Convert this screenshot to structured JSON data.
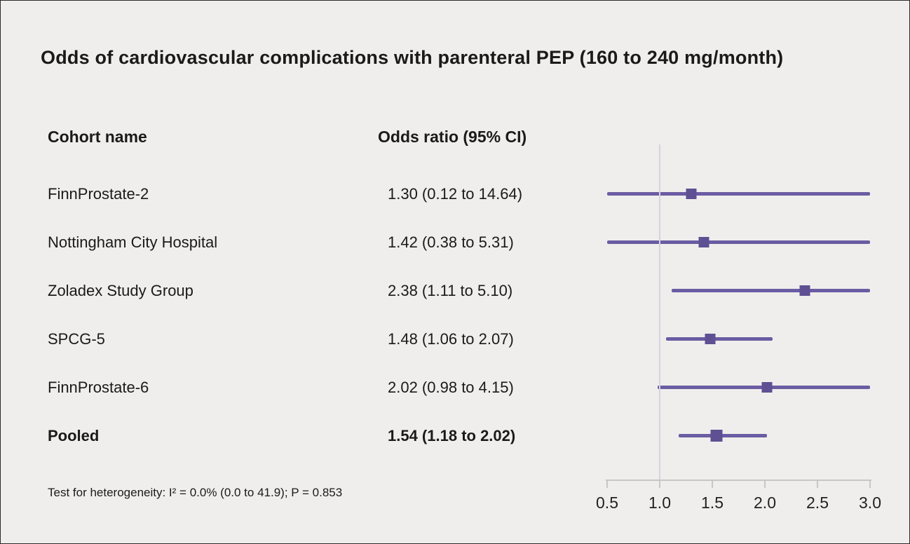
{
  "chart_data": {
    "type": "forest",
    "title": "Odds of cardiovascular complications with parenteral PEP (160 to 240 mg/month)",
    "columns": [
      "Cohort name",
      "Odds ratio (95% CI)"
    ],
    "rows": [
      {
        "name": "FinnProstate-2",
        "or_label": "1.30 (0.12 to 14.64)",
        "or": 1.3,
        "lo": 0.12,
        "hi": 14.64,
        "pooled": false
      },
      {
        "name": "Nottingham City Hospital",
        "or_label": "1.42 (0.38 to 5.31)",
        "or": 1.42,
        "lo": 0.38,
        "hi": 5.31,
        "pooled": false
      },
      {
        "name": "Zoladex Study Group",
        "or_label": "2.38 (1.11 to 5.10)",
        "or": 2.38,
        "lo": 1.11,
        "hi": 5.1,
        "pooled": false
      },
      {
        "name": "SPCG-5",
        "or_label": "1.48 (1.06 to 2.07)",
        "or": 1.48,
        "lo": 1.06,
        "hi": 2.07,
        "pooled": false
      },
      {
        "name": "FinnProstate-6",
        "or_label": "2.02 (0.98 to 4.15)",
        "or": 2.02,
        "lo": 0.98,
        "hi": 4.15,
        "pooled": false
      },
      {
        "name": "Pooled",
        "or_label": "1.54 (1.18 to 2.02)",
        "or": 1.54,
        "lo": 1.18,
        "hi": 2.02,
        "pooled": true
      }
    ],
    "x_axis": {
      "min": 0.5,
      "max": 3.0,
      "ticks": [
        0.5,
        1.0,
        1.5,
        2.0,
        2.5,
        3.0
      ],
      "tick_labels": [
        "0.5",
        "1.0",
        "1.5",
        "2.0",
        "2.5",
        "3.0"
      ],
      "reference_line": 1.0,
      "scale": "linear",
      "grid": false
    },
    "footnote": "Test for heterogeneity: I² = 0.0% (0.0 to 41.9); P = 0.853",
    "colors": {
      "marker": "#5e5093",
      "ci_line": "#6b5ca3",
      "reference_line": "#d6d3de",
      "axis": "#c9c6c2",
      "background": "#f0eeec",
      "text": "#1a1a1a"
    }
  }
}
